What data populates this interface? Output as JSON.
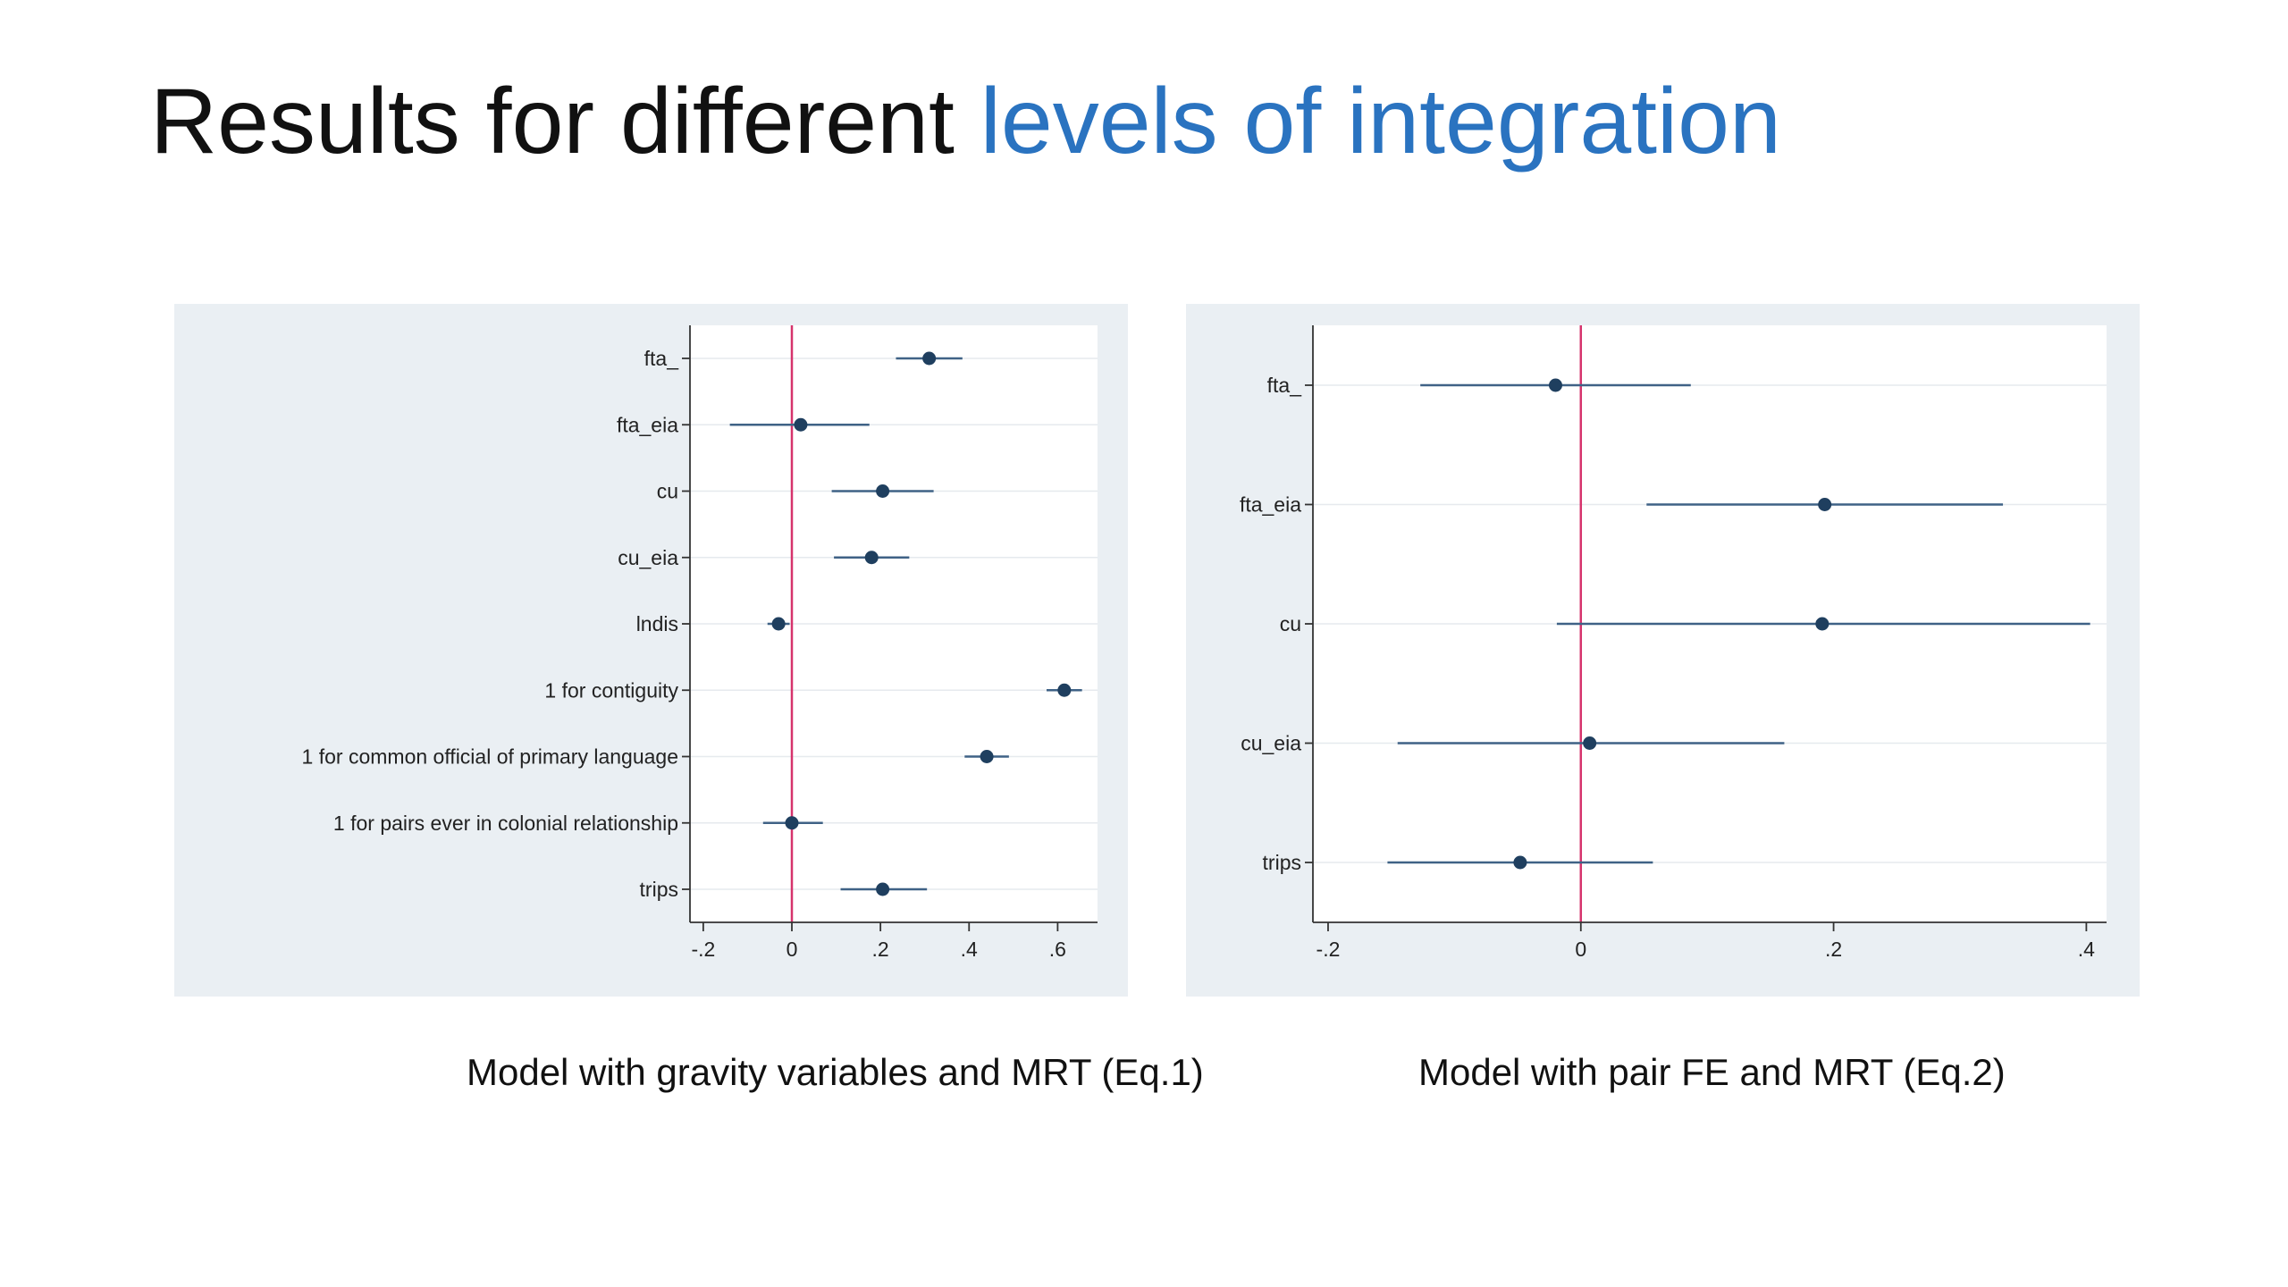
{
  "title": {
    "part1": "Results for different ",
    "part2": "levels of integration",
    "accent_color": "#2a73c0"
  },
  "captions": {
    "left": "Model with gravity variables and MRT (Eq.1)",
    "right": "Model with pair FE and MRT (Eq.2)"
  },
  "chart_data": [
    {
      "type": "coefficient-plot",
      "title": "",
      "xlabel": "",
      "ylabel": "",
      "xlim": [
        -0.23,
        0.69
      ],
      "xticks": [
        -0.2,
        0,
        0.2,
        0.4,
        0.6
      ],
      "xtick_labels": [
        "-.2",
        "0",
        ".2",
        ".4",
        ".6"
      ],
      "reference_line": 0,
      "reference_color": "#d6336c",
      "marker_color": "#1f3f5f",
      "grid": true,
      "categories": [
        "fta_",
        "fta_eia",
        "cu",
        "cu_eia",
        "lndis",
        "1 for contiguity",
        "1 for common official of primary language",
        "1 for pairs ever in colonial relationship",
        "trips"
      ],
      "estimates": [
        0.31,
        0.02,
        0.205,
        0.18,
        -0.03,
        0.615,
        0.44,
        0.0,
        0.205
      ],
      "ci_low": [
        0.235,
        -0.14,
        0.09,
        0.095,
        -0.055,
        0.575,
        0.39,
        -0.065,
        0.11
      ],
      "ci_high": [
        0.385,
        0.175,
        0.32,
        0.265,
        -0.005,
        0.655,
        0.49,
        0.07,
        0.305
      ]
    },
    {
      "type": "coefficient-plot",
      "title": "",
      "xlabel": "",
      "ylabel": "",
      "xlim": [
        -0.212,
        0.416
      ],
      "xticks": [
        -0.2,
        0,
        0.2,
        0.4
      ],
      "xtick_labels": [
        "-.2",
        "0",
        ".2",
        ".4"
      ],
      "reference_line": 0,
      "reference_color": "#d6336c",
      "marker_color": "#1f3f5f",
      "grid": true,
      "categories": [
        "fta_",
        "fta_eia",
        "cu",
        "cu_eia",
        "trips"
      ],
      "estimates": [
        -0.02,
        0.193,
        0.191,
        0.007,
        -0.048
      ],
      "ci_low": [
        -0.127,
        0.052,
        -0.019,
        -0.145,
        -0.153
      ],
      "ci_high": [
        0.087,
        0.334,
        0.403,
        0.161,
        0.057
      ]
    }
  ]
}
